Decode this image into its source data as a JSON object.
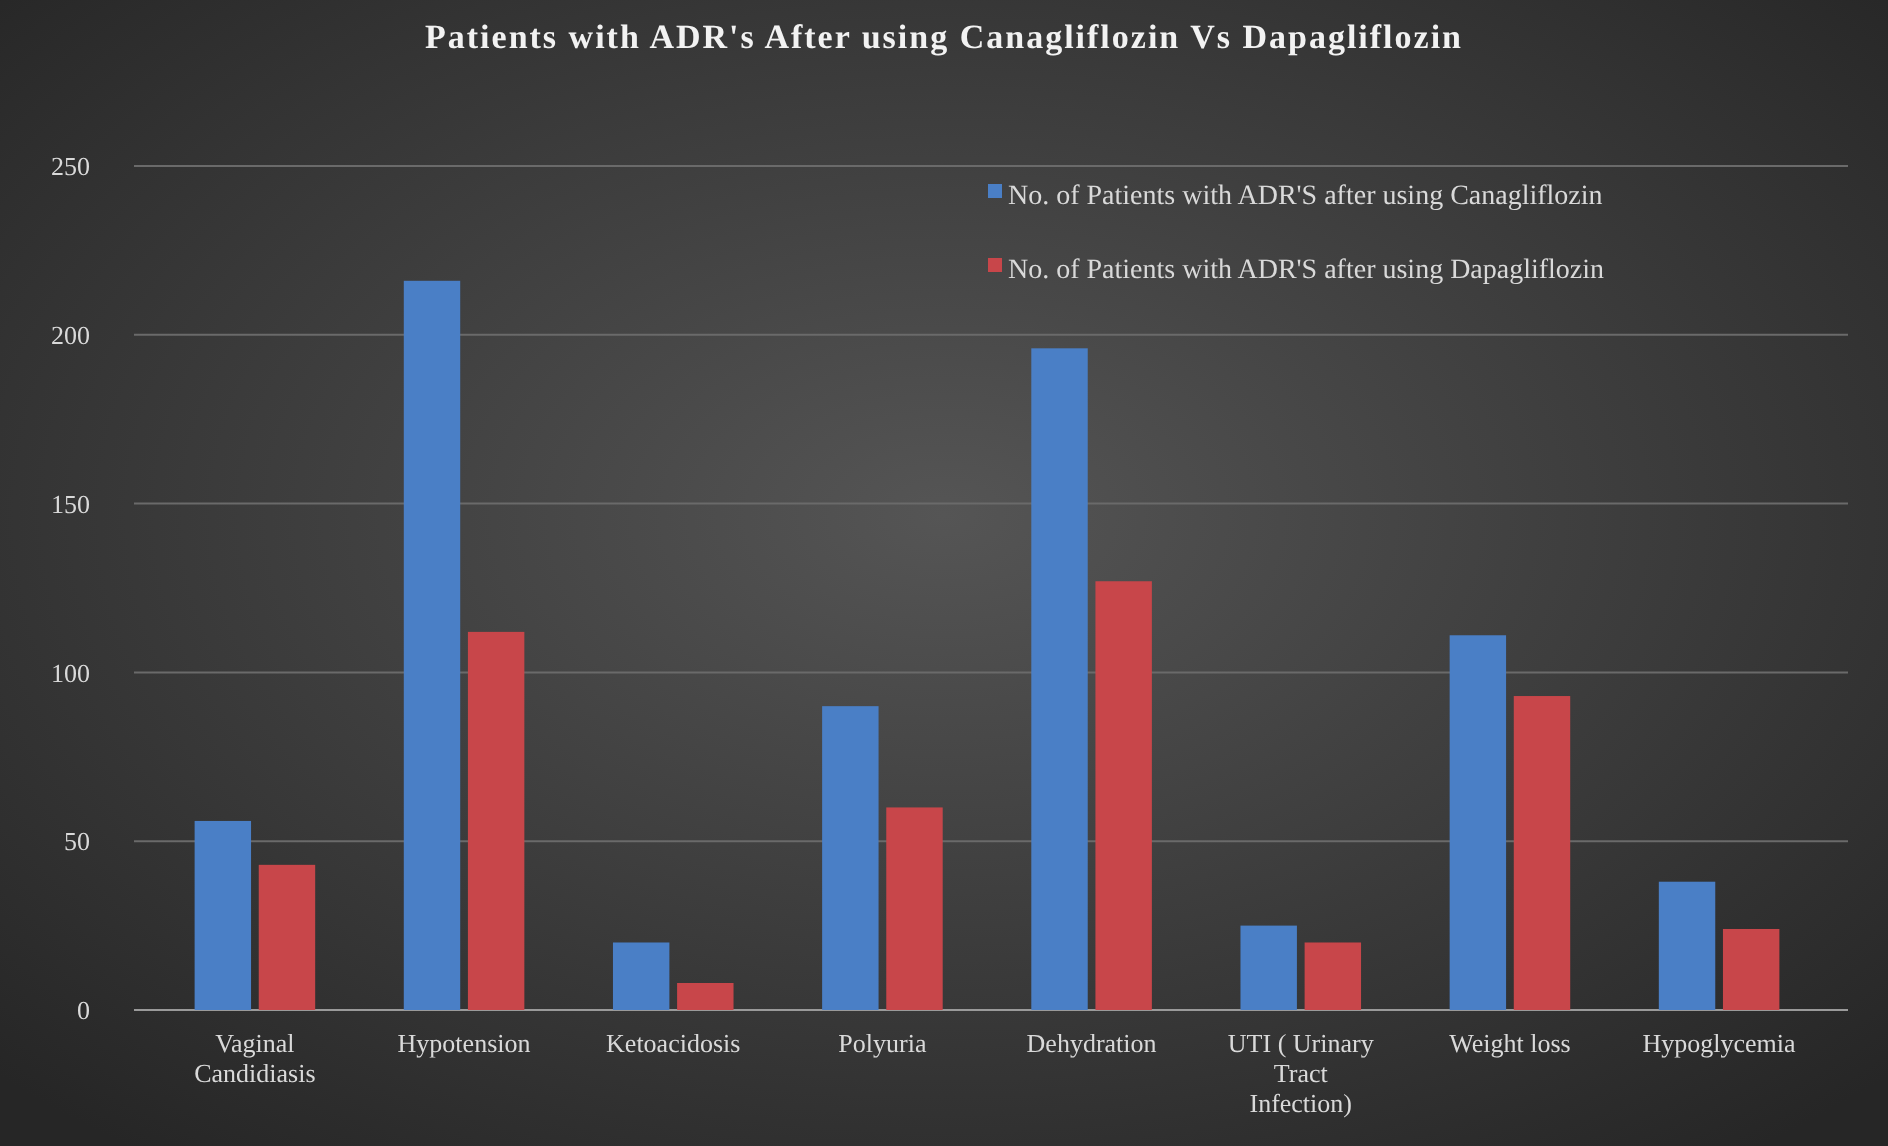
{
  "chart_data": {
    "type": "bar",
    "title": "Patients with ADR's After using Canagliflozin Vs Dapagliflozin",
    "categories": [
      "Vaginal Candidiasis",
      "Hypotension",
      "Ketoacidosis",
      "Polyuria",
      "Dehydration",
      "UTI ( Urinary Tract Infection)",
      "Weight loss",
      "Hypoglycemia"
    ],
    "series": [
      {
        "name": "No. of Patients with ADR'S after using Canagliflozin",
        "color": "#4a7fc6",
        "values": [
          56,
          216,
          20,
          90,
          196,
          25,
          111,
          38
        ]
      },
      {
        "name": "No. of Patients with ADR'S after using Dapagliflozin",
        "color": "#c8464a",
        "values": [
          43,
          112,
          8,
          60,
          127,
          20,
          93,
          24
        ]
      }
    ],
    "ylim": [
      0,
      250
    ],
    "yticks": [
      0,
      50,
      100,
      150,
      200,
      250
    ],
    "grid": "y",
    "legend": "top right"
  }
}
